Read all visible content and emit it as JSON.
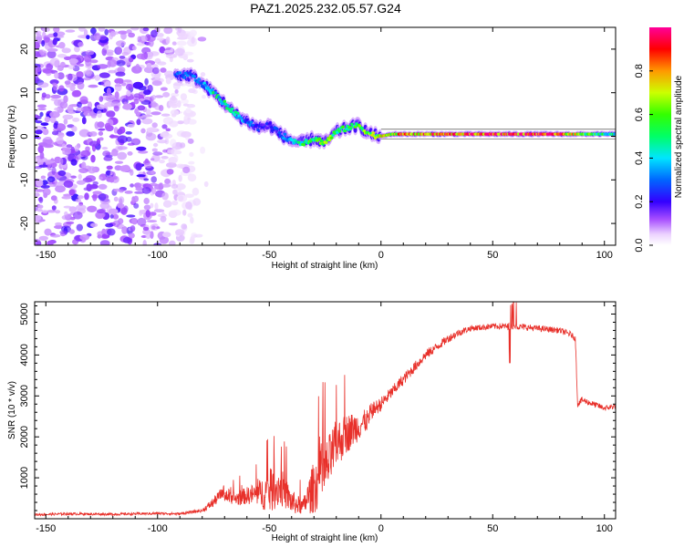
{
  "title": "PAZ1.2025.232.05.57.G24",
  "chart_data": [
    {
      "type": "heatmap",
      "xlabel": "Height of straight line (km)",
      "ylabel": "Frequency (Hz)",
      "xlim": [
        -155,
        105
      ],
      "ylim": [
        -25,
        25
      ],
      "x_ticks": [
        -150,
        -100,
        -50,
        0,
        50,
        100
      ],
      "y_ticks": [
        -20,
        -10,
        0,
        10,
        20
      ],
      "colorbar": {
        "label": "Normalized spectral amplitude",
        "range": [
          0,
          1
        ],
        "ticks": [
          0.0,
          0.2,
          0.4,
          0.6,
          0.8
        ]
      },
      "noise_region_x": [
        -155,
        -83
      ],
      "ridge": {
        "x": [
          -92,
          -85,
          -80,
          -75,
          -70,
          -65,
          -60,
          -55,
          -50,
          -45,
          -40,
          -35,
          -30,
          -25,
          -20,
          -15,
          -10,
          -5,
          0,
          5,
          10,
          20,
          30,
          40,
          50,
          60,
          70,
          80,
          90,
          100,
          105
        ],
        "freq": [
          14,
          14,
          12,
          10,
          7.5,
          5,
          3.5,
          2,
          2.5,
          0.5,
          -1,
          -1.5,
          -0.5,
          -1.5,
          1,
          2,
          2.5,
          0.5,
          0,
          0.5,
          0.5,
          0.5,
          0.5,
          0.5,
          0.5,
          0.5,
          0.5,
          0.5,
          0.5,
          0.5,
          0.5
        ],
        "amplitude": [
          0.3,
          0.3,
          0.35,
          0.45,
          0.5,
          0.5,
          0.3,
          0.25,
          0.2,
          0.3,
          0.35,
          0.5,
          0.55,
          0.6,
          0.55,
          0.5,
          0.55,
          0.6,
          0.7,
          0.75,
          0.8,
          0.8,
          0.85,
          0.9,
          0.95,
          0.95,
          0.95,
          0.9,
          0.6,
          0.5,
          0.5
        ]
      }
    },
    {
      "type": "line",
      "xlabel": "Height of straight line (km)",
      "ylabel": "SNR (10 * v/v)",
      "xlim": [
        -155,
        105
      ],
      "ylim": [
        0,
        5300
      ],
      "x_ticks": [
        -150,
        -100,
        -50,
        0,
        50,
        100
      ],
      "y_ticks": [
        1000,
        2000,
        3000,
        4000,
        5000
      ],
      "color": "#e8302a",
      "x": [
        -155,
        -140,
        -120,
        -100,
        -90,
        -80,
        -75,
        -70,
        -65,
        -60,
        -55,
        -50,
        -45,
        -40,
        -35,
        -30,
        -25,
        -20,
        -15,
        -10,
        -5,
        0,
        5,
        10,
        15,
        20,
        25,
        30,
        35,
        40,
        50,
        60,
        70,
        80,
        85,
        87,
        88,
        90,
        95,
        100,
        105
      ],
      "snr": [
        100,
        120,
        110,
        130,
        120,
        200,
        400,
        700,
        600,
        700,
        800,
        1000,
        1100,
        600,
        400,
        1200,
        1600,
        2200,
        2400,
        2500,
        2600,
        2800,
        3100,
        3400,
        3700,
        4000,
        4200,
        4400,
        4550,
        4650,
        4700,
        4700,
        4650,
        4600,
        4500,
        4400,
        2800,
        2900,
        2800,
        2700,
        2750
      ],
      "noise_amplitude": [
        60,
        60,
        60,
        60,
        60,
        80,
        250,
        300,
        300,
        350,
        500,
        900,
        800,
        500,
        300,
        1100,
        1200,
        1000,
        800,
        600,
        400,
        350,
        300,
        280,
        260,
        250,
        220,
        200,
        180,
        150,
        150,
        160,
        150,
        150,
        150,
        150,
        160,
        160,
        150,
        140,
        140
      ]
    }
  ]
}
